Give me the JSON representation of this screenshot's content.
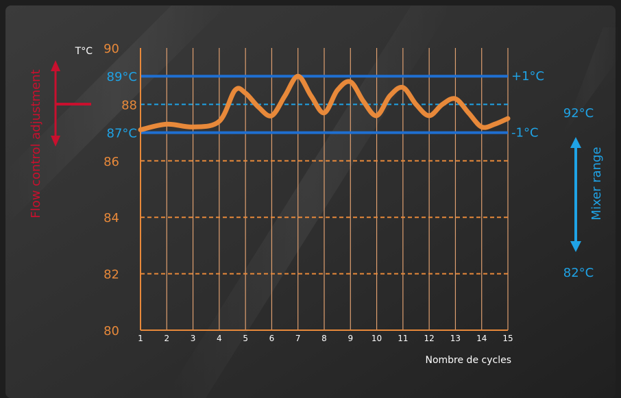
{
  "chart_data": {
    "type": "line",
    "title": "",
    "xlabel": "Nombre de cycles",
    "ylabel": "T°C",
    "x": [
      1,
      2,
      3,
      4,
      5,
      6,
      7,
      8,
      9,
      10,
      11,
      12,
      13,
      14,
      15
    ],
    "xlim": [
      1,
      15
    ],
    "ylim": [
      80,
      90
    ],
    "yticks": [
      80,
      82,
      84,
      86,
      88,
      90
    ],
    "series": [
      {
        "name": "",
        "points": [
          [
            1,
            87.1
          ],
          [
            2,
            87.3
          ],
          [
            3,
            87.2
          ],
          [
            4,
            87.4
          ],
          [
            4.6,
            88.5
          ],
          [
            5,
            88.4
          ],
          [
            5.5,
            87.9
          ],
          [
            6,
            87.6
          ],
          [
            6.5,
            88.3
          ],
          [
            7,
            89.0
          ],
          [
            7.5,
            88.3
          ],
          [
            8,
            87.7
          ],
          [
            8.5,
            88.5
          ],
          [
            9,
            88.8
          ],
          [
            9.5,
            88.1
          ],
          [
            10,
            87.6
          ],
          [
            10.5,
            88.3
          ],
          [
            11,
            88.6
          ],
          [
            11.5,
            88.0
          ],
          [
            12,
            87.6
          ],
          [
            12.5,
            88.0
          ],
          [
            13,
            88.2
          ],
          [
            13.5,
            87.7
          ],
          [
            14,
            87.2
          ],
          [
            14.5,
            87.3
          ],
          [
            15,
            87.5
          ]
        ],
        "color": "#e8893a"
      }
    ],
    "reference_lines": [
      {
        "y": 89,
        "style": "solid",
        "color": "#1f6fd1",
        "left_label": "89°C",
        "right_label": "+1°C"
      },
      {
        "y": 88,
        "style": "dashed",
        "color": "#1fa3e6",
        "left_label": "88",
        "right_label": ""
      },
      {
        "y": 87,
        "style": "solid",
        "color": "#1f6fd1",
        "left_label": "87°C",
        "right_label": "-1°C"
      },
      {
        "y": 86,
        "style": "dashed",
        "color": "#e8893a"
      },
      {
        "y": 84,
        "style": "dashed",
        "color": "#e8893a"
      },
      {
        "y": 82,
        "style": "dashed",
        "color": "#e8893a"
      }
    ],
    "annotations": {
      "flow_control": "Flow control adjustment",
      "mixer_range": "Mixer range",
      "mixer_top": "92°C",
      "mixer_bottom": "82°C"
    },
    "grid": true
  },
  "colors": {
    "axis": "#e8893a",
    "grid": "#e0a070",
    "blue_line": "#1f6fd1",
    "blue_text": "#1fa3e6",
    "red": "#c8102e"
  }
}
